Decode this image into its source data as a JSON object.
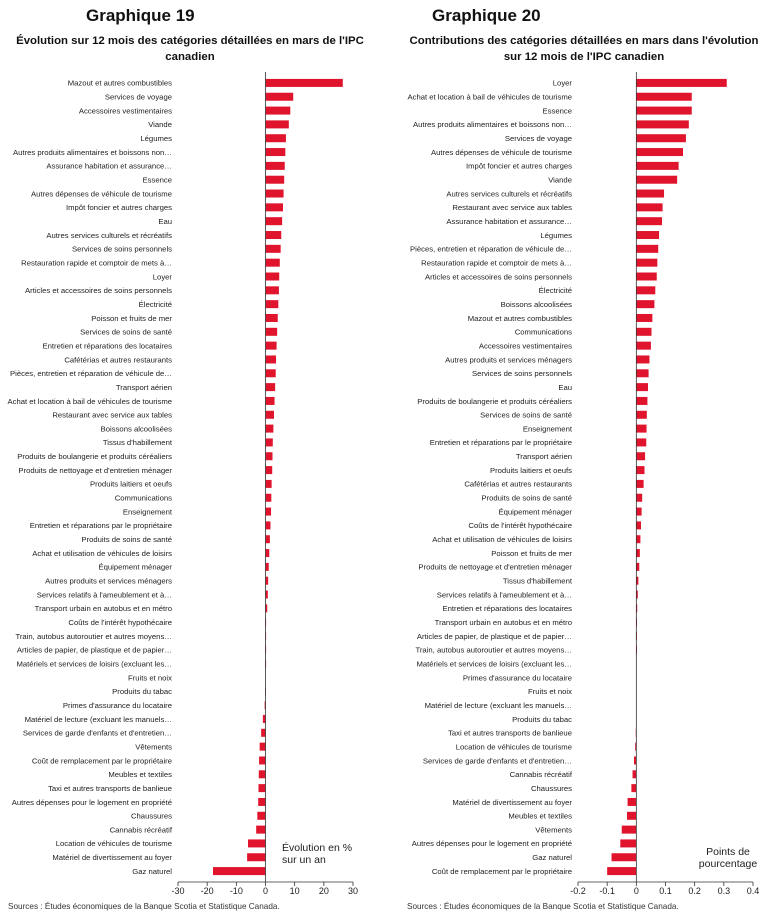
{
  "colors": {
    "bar": "#e0142c",
    "axis": "#333333",
    "text": "#222222"
  },
  "chart_data": [
    {
      "type": "bar",
      "orientation": "horizontal",
      "title": "Graphique 19",
      "subtitle": "Évolution sur 12 mois des catégories détaillées en mars de l'IPC canadien",
      "unit_label": "Évolution en % sur un an",
      "source": "Sources : Études économiques de la Banque Scotia et Statistique Canada.",
      "xlim": [
        -30,
        30
      ],
      "xticks": [
        "-30",
        "-20",
        "-10",
        "0",
        "10",
        "20",
        "30"
      ],
      "xtick_values": [
        -30,
        -20,
        -10,
        0,
        10,
        20,
        30
      ],
      "grid": false,
      "categories": [
        "Mazout et autres combustibles",
        "Services de voyage",
        "Accessoires vestimentaires",
        "Viande",
        "Légumes",
        "Autres produits alimentaires et boissons non…",
        "Assurance habitation et assurance…",
        "Essence",
        "Autres dépenses de véhicule de tourisme",
        "Impôt foncier et autres charges",
        "Eau",
        "Autres services culturels et récréatifs",
        "Services de soins personnels",
        "Restauration rapide et comptoir de mets à…",
        "Loyer",
        "Articles et accessoires de soins personnels",
        "Électricité",
        "Poisson et fruits de mer",
        "Services de soins de santé",
        "Entretien et réparations des locataires",
        "Cafétérias et autres restaurants",
        "Pièces, entretien et réparation de véhicule de…",
        "Transport aérien",
        "Achat et location à bail de véhicules de tourisme",
        "Restaurant avec service aux tables",
        "Boissons alcoolisées",
        "Tissus d'habillement",
        "Produits de boulangerie et produits céréaliers",
        "Produits de nettoyage et d'entretien ménager",
        "Produits laitiers et oeufs",
        "Communications",
        "Enseignement",
        "Entretien et réparations par le propriétaire",
        "Produits de soins de santé",
        "Achat et utilisation de véhicules de loisirs",
        "Équipement ménager",
        "Autres produits et services ménagers",
        "Services relatifs à l'ameublement et à…",
        "Transport urbain en autobus et en métro",
        "Coûts de l'intérêt hypothécaire",
        "Train, autobus autoroutier et autres moyens…",
        "Articles de papier, de plastique et de papier…",
        "Matériels et services de loisirs (excluant les…",
        "Fruits et noix",
        "Produits du tabac",
        "Primes d'assurance du locataire",
        "Matériel de lecture (excluant les manuels…",
        "Services de garde d'enfants et d'entretien…",
        "Vêtements",
        "Coût de remplacement par le propriétaire",
        "Meubles et textiles",
        "Taxi et autres transports de banlieue",
        "Autres dépenses pour le logement en propriété",
        "Chaussures",
        "Cannabis récréatif",
        "Location de véhicules de tourisme",
        "Matériel de divertissement au foyer",
        "Gaz naturel"
      ],
      "values": [
        26.5,
        9.5,
        8.5,
        8.0,
        7.0,
        6.8,
        6.6,
        6.4,
        6.2,
        6.0,
        5.7,
        5.4,
        5.2,
        4.9,
        4.7,
        4.6,
        4.4,
        4.2,
        4.0,
        3.8,
        3.6,
        3.5,
        3.3,
        3.1,
        2.9,
        2.7,
        2.5,
        2.4,
        2.3,
        2.1,
        2.0,
        1.9,
        1.7,
        1.5,
        1.3,
        1.1,
        0.9,
        0.8,
        0.6,
        0.2,
        0.1,
        0.05,
        0.05,
        0.0,
        -0.1,
        -0.3,
        -0.9,
        -1.5,
        -2.0,
        -2.2,
        -2.3,
        -2.4,
        -2.5,
        -2.8,
        -3.2,
        -6.0,
        -6.3,
        -18.0
      ]
    },
    {
      "type": "bar",
      "orientation": "horizontal",
      "title": "Graphique 20",
      "subtitle": "Contributions des catégories détaillées en mars dans l'évolution sur 12 mois de l'IPC canadien",
      "unit_label": "Points de pourcentage",
      "source": "Sources : Études économiques de la Banque Scotia et Statistique Canada.",
      "xlim": [
        -0.2,
        0.4
      ],
      "xticks": [
        "-0.2",
        "-0.1",
        "0",
        "0.1",
        "0.2",
        "0.3",
        "0.4"
      ],
      "xtick_values": [
        -0.2,
        -0.1,
        0,
        0.1,
        0.2,
        0.3,
        0.4
      ],
      "grid": false,
      "categories": [
        "Loyer",
        "Achat et location à bail de véhicules de tourisme",
        "Essence",
        "Autres produits alimentaires et boissons non…",
        "Services de voyage",
        "Autres dépenses de véhicule de tourisme",
        "Impôt foncier et autres charges",
        "Viande",
        "Autres services culturels et récréatifs",
        "Restaurant avec service aux tables",
        "Assurance habitation et assurance…",
        "Légumes",
        "Pièces, entretien et réparation de véhicule de…",
        "Restauration rapide et comptoir de mets à…",
        "Articles et accessoires de soins personnels",
        "Électricité",
        "Boissons alcoolisées",
        "Mazout et autres combustibles",
        "Communications",
        "Accessoires vestimentaires",
        "Autres produits et services ménagers",
        "Services de soins personnels",
        "Eau",
        "Produits de boulangerie et produits céréaliers",
        "Services de soins de santé",
        "Enseignement",
        "Entretien et réparations par le propriétaire",
        "Transport aérien",
        "Produits laitiers et oeufs",
        "Cafétérias et autres restaurants",
        "Produits de soins de santé",
        "Équipement ménager",
        "Coûts de l'intérêt hypothécaire",
        "Achat et utilisation de véhicules de loisirs",
        "Poisson et fruits de mer",
        "Produits de nettoyage et d'entretien ménager",
        "Tissus d'habillement",
        "Services relatifs à l'ameublement et à…",
        "Entretien et réparations des locataires",
        "Transport urbain en autobus et en métro",
        "Articles de papier, de plastique et de papier…",
        "Train, autobus autoroutier et autres moyens…",
        "Matériels et services de loisirs (excluant les…",
        "Primes d'assurance du locataire",
        "Fruits et noix",
        "Matériel de lecture (excluant les manuels…",
        "Produits du tabac",
        "Taxi et autres transports de banlieue",
        "Location de véhicules de tourisme",
        "Services de garde d'enfants et d'entretien…",
        "Cannabis récréatif",
        "Chaussures",
        "Matériel de divertissement au foyer",
        "Meubles et textiles",
        "Vêtements",
        "Autres dépenses pour le logement en propriété",
        "Gaz naturel",
        "Coût de remplacement par le propriétaire"
      ],
      "values": [
        0.31,
        0.19,
        0.19,
        0.18,
        0.17,
        0.16,
        0.145,
        0.14,
        0.095,
        0.09,
        0.088,
        0.078,
        0.075,
        0.072,
        0.07,
        0.065,
        0.062,
        0.055,
        0.052,
        0.05,
        0.045,
        0.042,
        0.04,
        0.038,
        0.036,
        0.035,
        0.034,
        0.03,
        0.028,
        0.025,
        0.02,
        0.018,
        0.016,
        0.014,
        0.012,
        0.01,
        0.007,
        0.005,
        0.003,
        0.002,
        0.001,
        0.001,
        0.0,
        0.0,
        0.0,
        0.0,
        0.0,
        -0.002,
        -0.004,
        -0.008,
        -0.013,
        -0.017,
        -0.03,
        -0.032,
        -0.05,
        -0.055,
        -0.085,
        -0.1
      ]
    }
  ]
}
